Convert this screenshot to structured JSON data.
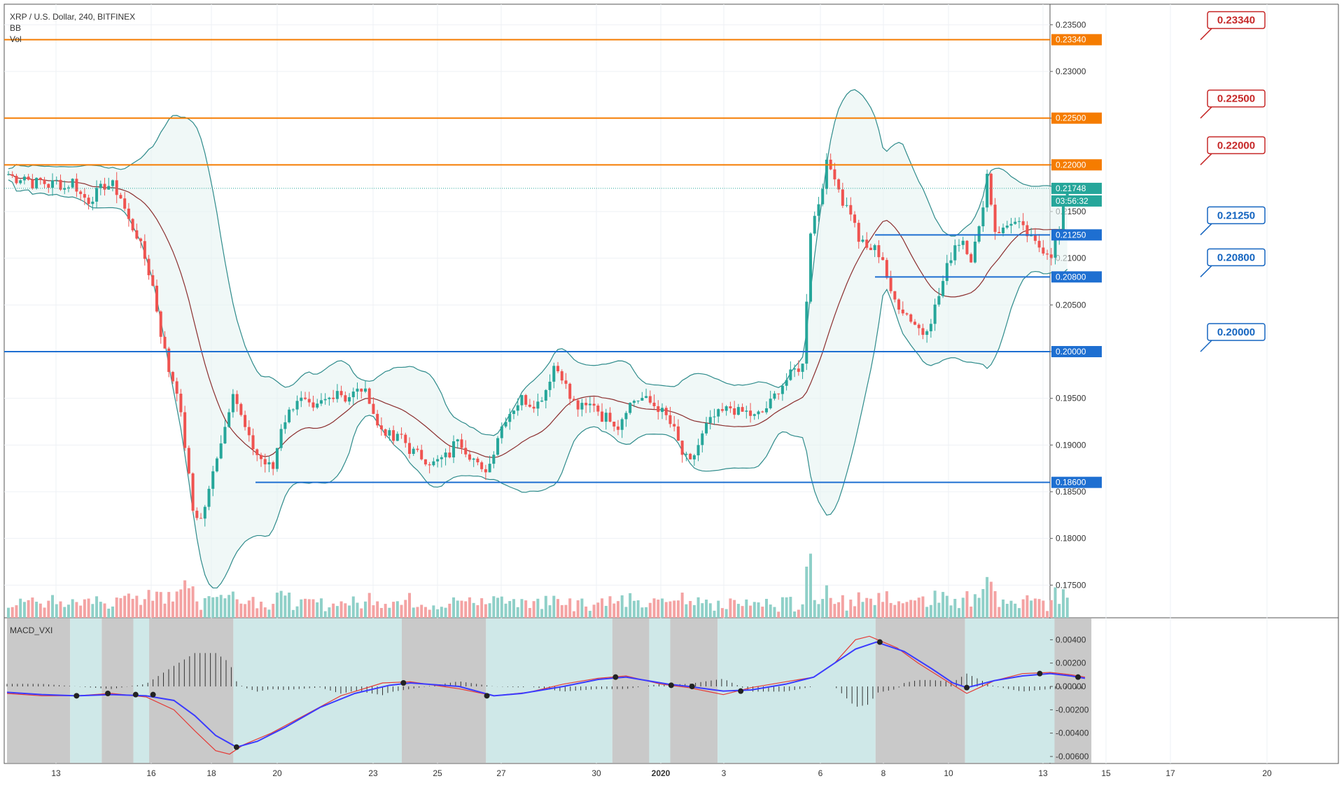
{
  "header": {
    "symbol_line": "XRP / U.S. Dollar, 240, BITFINEX",
    "indicator_bb": "BB",
    "indicator_vol": "Vol",
    "macd_label": "MACD_VXI"
  },
  "colors": {
    "up": "#26a69a",
    "down": "#ef5350",
    "resistance": "#f57c00",
    "support": "#1e6fd1",
    "callout_red": "#c62828",
    "callout_blue": "#1565c0",
    "bb_band": "#2e8b8b",
    "bb_basis": "#8b2e2e",
    "macd_line": "#3b3bff",
    "signal_line": "#e53935",
    "grid": "#eef1f4",
    "shade_gray": "#c9c9c9",
    "shade_teal": "#cfe8e8"
  },
  "chart_data": {
    "type": "candlestick",
    "title": "XRP / U.S. Dollar, 240, BITFINEX",
    "price_axis": {
      "range": [
        0.1715,
        0.2372
      ],
      "ticks": [
        "0.23500",
        "0.23000",
        "0.22500",
        "0.22000",
        "0.21500",
        "0.21000",
        "0.20500",
        "0.20000",
        "0.19500",
        "0.19000",
        "0.18500",
        "0.18000",
        "0.17500"
      ]
    },
    "x_axis": {
      "ticks": [
        "13",
        "16",
        "18",
        "20",
        "23",
        "25",
        "27",
        "30",
        "2020",
        "3",
        "6",
        "8",
        "10",
        "13",
        "15",
        "17",
        "20"
      ]
    },
    "horizontal_levels": [
      {
        "price": 0.2334,
        "label": "0.23340",
        "kind": "resistance",
        "callout": true
      },
      {
        "price": 0.225,
        "label": "0.22500",
        "kind": "resistance",
        "callout": true
      },
      {
        "price": 0.22,
        "label": "0.22000",
        "kind": "resistance",
        "callout": true
      },
      {
        "price": 0.2125,
        "label": "0.21250",
        "kind": "support",
        "callout": true
      },
      {
        "price": 0.208,
        "label": "0.20800",
        "kind": "support",
        "callout": true
      },
      {
        "price": 0.2,
        "label": "0.20000",
        "kind": "support",
        "callout": true
      },
      {
        "price": 0.186,
        "label": "0.18600",
        "kind": "support",
        "callout": false
      }
    ],
    "last_price": {
      "label": "0.21748",
      "countdown": "03:56:32",
      "price": 0.21748
    },
    "price_path": [
      [
        0,
        0.219
      ],
      [
        2,
        0.2185
      ],
      [
        4,
        0.2188
      ],
      [
        6,
        0.218
      ],
      [
        8,
        0.2183
      ],
      [
        10,
        0.2178
      ],
      [
        12,
        0.2182
      ],
      [
        14,
        0.2175
      ],
      [
        16,
        0.2183
      ],
      [
        18,
        0.2168
      ],
      [
        20,
        0.2162
      ],
      [
        22,
        0.217
      ],
      [
        24,
        0.2178
      ],
      [
        26,
        0.2178
      ],
      [
        28,
        0.2165
      ],
      [
        30,
        0.214
      ],
      [
        32,
        0.2125
      ],
      [
        34,
        0.21
      ],
      [
        36,
        0.207
      ],
      [
        38,
        0.202
      ],
      [
        40,
        0.198
      ],
      [
        42,
        0.196
      ],
      [
        44,
        0.19
      ],
      [
        46,
        0.183
      ],
      [
        48,
        0.182
      ],
      [
        50,
        0.185
      ],
      [
        52,
        0.189
      ],
      [
        54,
        0.192
      ],
      [
        56,
        0.196
      ],
      [
        58,
        0.193
      ],
      [
        60,
        0.1905
      ],
      [
        62,
        0.189
      ],
      [
        64,
        0.188
      ],
      [
        66,
        0.1875
      ],
      [
        68,
        0.192
      ],
      [
        70,
        0.1935
      ],
      [
        72,
        0.195
      ],
      [
        74,
        0.1945
      ],
      [
        76,
        0.1935
      ],
      [
        78,
        0.1945
      ],
      [
        80,
        0.195
      ],
      [
        82,
        0.196
      ],
      [
        84,
        0.195
      ],
      [
        86,
        0.1955
      ],
      [
        88,
        0.196
      ],
      [
        90,
        0.195
      ],
      [
        92,
        0.192
      ],
      [
        94,
        0.1915
      ],
      [
        96,
        0.1905
      ],
      [
        98,
        0.191
      ],
      [
        100,
        0.1895
      ],
      [
        102,
        0.189
      ],
      [
        104,
        0.1885
      ],
      [
        106,
        0.188
      ],
      [
        108,
        0.1885
      ],
      [
        110,
        0.189
      ],
      [
        112,
        0.191
      ],
      [
        114,
        0.1895
      ],
      [
        116,
        0.1885
      ],
      [
        118,
        0.187
      ],
      [
        120,
        0.188
      ],
      [
        122,
        0.191
      ],
      [
        124,
        0.193
      ],
      [
        126,
        0.194
      ],
      [
        128,
        0.195
      ],
      [
        130,
        0.1945
      ],
      [
        132,
        0.1945
      ],
      [
        134,
        0.196
      ],
      [
        136,
        0.1985
      ],
      [
        138,
        0.1975
      ],
      [
        140,
        0.195
      ],
      [
        142,
        0.194
      ],
      [
        144,
        0.194
      ],
      [
        146,
        0.1945
      ],
      [
        148,
        0.193
      ],
      [
        150,
        0.193
      ],
      [
        152,
        0.192
      ],
      [
        154,
        0.194
      ],
      [
        156,
        0.1948
      ],
      [
        158,
        0.195
      ],
      [
        160,
        0.1945
      ],
      [
        162,
        0.194
      ],
      [
        164,
        0.193
      ],
      [
        166,
        0.1915
      ],
      [
        168,
        0.189
      ],
      [
        170,
        0.188
      ],
      [
        172,
        0.19
      ],
      [
        174,
        0.192
      ],
      [
        176,
        0.193
      ],
      [
        178,
        0.1935
      ],
      [
        180,
        0.194
      ],
      [
        182,
        0.1935
      ],
      [
        184,
        0.1935
      ],
      [
        186,
        0.193
      ],
      [
        188,
        0.1935
      ],
      [
        190,
        0.1945
      ],
      [
        192,
        0.196
      ],
      [
        194,
        0.197
      ],
      [
        196,
        0.198
      ],
      [
        198,
        0.1985
      ],
      [
        200,
        0.213
      ],
      [
        202,
        0.216
      ],
      [
        204,
        0.22
      ],
      [
        206,
        0.219
      ],
      [
        208,
        0.216
      ],
      [
        210,
        0.215
      ],
      [
        212,
        0.212
      ],
      [
        214,
        0.211
      ],
      [
        216,
        0.211
      ],
      [
        218,
        0.21
      ],
      [
        220,
        0.206
      ],
      [
        222,
        0.205
      ],
      [
        224,
        0.204
      ],
      [
        226,
        0.203
      ],
      [
        228,
        0.202
      ],
      [
        230,
        0.2035
      ],
      [
        232,
        0.206
      ],
      [
        234,
        0.209
      ],
      [
        236,
        0.2115
      ],
      [
        238,
        0.212
      ],
      [
        240,
        0.21
      ],
      [
        242,
        0.213
      ],
      [
        244,
        0.219
      ],
      [
        246,
        0.213
      ],
      [
        248,
        0.213
      ],
      [
        250,
        0.214
      ],
      [
        252,
        0.2135
      ],
      [
        254,
        0.2125
      ],
      [
        256,
        0.2115
      ],
      [
        258,
        0.211
      ],
      [
        260,
        0.2105
      ],
      [
        262,
        0.213
      ],
      [
        264,
        0.2175
      ],
      [
        265,
        0.2175
      ]
    ],
    "macd_axis": {
      "range": [
        -0.0066,
        0.0054
      ],
      "ticks": [
        "0.00400",
        "0.00200",
        "0.00000",
        "-0.00200",
        "-0.00400",
        "-0.00600"
      ]
    },
    "macd_line": [
      [
        0,
        -0.0005
      ],
      [
        10,
        -0.0007
      ],
      [
        20,
        -0.0008
      ],
      [
        30,
        -0.0007
      ],
      [
        40,
        -0.0008
      ],
      [
        48,
        -0.0012
      ],
      [
        54,
        -0.0025
      ],
      [
        60,
        -0.0042
      ],
      [
        66,
        -0.0052
      ],
      [
        72,
        -0.0047
      ],
      [
        80,
        -0.0035
      ],
      [
        90,
        -0.0018
      ],
      [
        100,
        -0.0006
      ],
      [
        110,
        0.0001
      ],
      [
        116,
        0.0003
      ],
      [
        130,
        0.0
      ],
      [
        140,
        -0.0008
      ],
      [
        148,
        -0.0006
      ],
      [
        160,
        0.0
      ],
      [
        170,
        0.0006
      ],
      [
        178,
        0.0008
      ],
      [
        190,
        0.0002
      ],
      [
        196,
        0.0
      ],
      [
        206,
        -0.0004
      ],
      [
        214,
        -0.0003
      ],
      [
        224,
        0.0002
      ],
      [
        232,
        0.0008
      ],
      [
        238,
        0.002
      ],
      [
        244,
        0.0032
      ],
      [
        250,
        0.0038
      ],
      [
        258,
        0.003
      ],
      [
        266,
        0.0015
      ],
      [
        272,
        0.0003
      ],
      [
        276,
        -0.0001
      ],
      [
        284,
        0.0005
      ],
      [
        292,
        0.0009
      ],
      [
        300,
        0.0011
      ],
      [
        306,
        0.0009
      ],
      [
        310,
        0.0007
      ]
    ],
    "signal_line": [
      [
        0,
        -0.0006
      ],
      [
        10,
        -0.0008
      ],
      [
        20,
        -0.0008
      ],
      [
        30,
        -0.0006
      ],
      [
        40,
        -0.0009
      ],
      [
        48,
        -0.002
      ],
      [
        54,
        -0.0038
      ],
      [
        60,
        -0.0055
      ],
      [
        64,
        -0.0058
      ],
      [
        68,
        -0.005
      ],
      [
        76,
        -0.004
      ],
      [
        86,
        -0.0024
      ],
      [
        96,
        -0.0008
      ],
      [
        108,
        0.0003
      ],
      [
        116,
        0.0004
      ],
      [
        130,
        -0.0002
      ],
      [
        140,
        -0.0008
      ],
      [
        150,
        -0.0005
      ],
      [
        160,
        0.0002
      ],
      [
        170,
        0.0007
      ],
      [
        178,
        0.0009
      ],
      [
        188,
        0.0002
      ],
      [
        196,
        -0.0001
      ],
      [
        206,
        -0.0007
      ],
      [
        214,
        -0.0001
      ],
      [
        224,
        0.0004
      ],
      [
        232,
        0.0008
      ],
      [
        238,
        0.002
      ],
      [
        244,
        0.004
      ],
      [
        248,
        0.0043
      ],
      [
        256,
        0.0033
      ],
      [
        262,
        0.002
      ],
      [
        270,
        0.0005
      ],
      [
        276,
        -0.0006
      ],
      [
        284,
        0.0005
      ],
      [
        292,
        0.0011
      ],
      [
        300,
        0.0012
      ],
      [
        306,
        0.001
      ],
      [
        310,
        0.0008
      ]
    ],
    "macd_cross_points": [
      [
        20,
        -0.0008
      ],
      [
        29,
        -0.0006
      ],
      [
        37,
        -0.0007
      ],
      [
        42,
        -0.0007
      ],
      [
        66,
        -0.0052
      ],
      [
        114,
        0.0003
      ],
      [
        138,
        -0.0008
      ],
      [
        175,
        0.0008
      ],
      [
        191,
        0.0001
      ],
      [
        197,
        0.0
      ],
      [
        211,
        -0.0004
      ],
      [
        251,
        0.0038
      ],
      [
        276,
        -0.0001
      ],
      [
        297,
        0.0011
      ],
      [
        308,
        0.0008
      ]
    ]
  }
}
